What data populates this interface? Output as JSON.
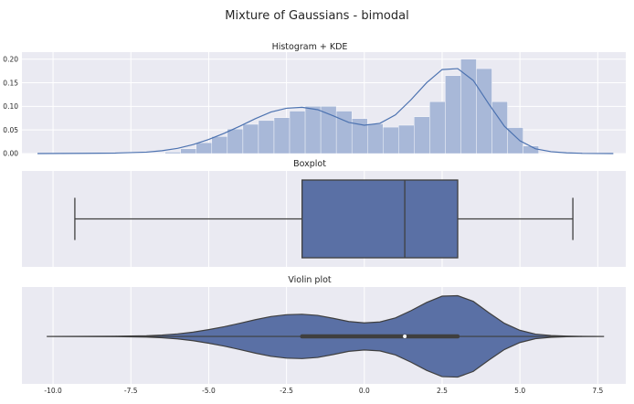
{
  "figure": {
    "title": "Mixture of Gaussians - bimodal",
    "colors": {
      "facecolor": "#EAEAF2",
      "grid": "#FFFFFF",
      "accent": "#4C72B0",
      "hist_fill": "#A8B8D8",
      "box_fill": "#5A70A5",
      "violin_fill": "#5A70A5",
      "line": "#3F3F3F"
    }
  },
  "chart_data": [
    {
      "type": "histogram",
      "title": "Histogram + KDE",
      "xlim": [
        -11,
        8.4
      ],
      "ylim": [
        0,
        0.215
      ],
      "yticks": [
        0.0,
        0.05,
        0.1,
        0.15,
        0.2
      ],
      "ytick_labels": [
        "0.00",
        "0.05",
        "0.10",
        "0.15",
        "0.20"
      ],
      "show_xticks": false,
      "bin_edges": [
        -6.4,
        -5.9,
        -5.4,
        -4.9,
        -4.4,
        -3.9,
        -3.4,
        -2.9,
        -2.4,
        -1.9,
        -1.4,
        -0.9,
        -0.4,
        0.1,
        0.6,
        1.1,
        1.6,
        2.1,
        2.6,
        3.1,
        3.6,
        4.1,
        4.6,
        5.1,
        5.6
      ],
      "counts": [
        0.003,
        0.01,
        0.023,
        0.036,
        0.052,
        0.062,
        0.07,
        0.076,
        0.09,
        0.1,
        0.1,
        0.09,
        0.074,
        0.063,
        0.056,
        0.06,
        0.078,
        0.11,
        0.165,
        0.2,
        0.18,
        0.11,
        0.055,
        0.016
      ],
      "kde": {
        "x": [
          -10.5,
          -9.0,
          -8.0,
          -7.0,
          -6.5,
          -6.0,
          -5.5,
          -5.0,
          -4.5,
          -4.0,
          -3.5,
          -3.0,
          -2.5,
          -2.0,
          -1.5,
          -1.0,
          -0.5,
          0.0,
          0.5,
          1.0,
          1.5,
          2.0,
          2.5,
          3.0,
          3.5,
          4.0,
          4.5,
          5.0,
          5.5,
          6.0,
          6.5,
          7.0,
          8.0
        ],
        "y": [
          0.0,
          0.0005,
          0.001,
          0.003,
          0.006,
          0.011,
          0.019,
          0.03,
          0.043,
          0.058,
          0.074,
          0.088,
          0.096,
          0.098,
          0.093,
          0.08,
          0.066,
          0.06,
          0.064,
          0.082,
          0.114,
          0.15,
          0.178,
          0.18,
          0.155,
          0.105,
          0.058,
          0.027,
          0.01,
          0.004,
          0.0015,
          0.0005,
          0.0
        ]
      }
    },
    {
      "type": "boxplot",
      "title": "Boxplot",
      "xlim": [
        -11,
        8.4
      ],
      "show_xticks": false,
      "whisker_low": -9.3,
      "q1": -2.0,
      "median": 1.3,
      "q3": 3.0,
      "whisker_high": 6.7
    },
    {
      "type": "violin",
      "title": "Violin plot",
      "xlim": [
        -11,
        8.4
      ],
      "xticks": [
        -10.0,
        -7.5,
        -5.0,
        -2.5,
        0.0,
        2.5,
        5.0,
        7.5
      ],
      "xtick_labels": [
        "-10.0",
        "-7.5",
        "-5.0",
        "-2.5",
        "0.0",
        "2.5",
        "5.0",
        "7.5"
      ],
      "line_min": -10.2,
      "line_max": 7.7,
      "q1": -2.0,
      "median": 1.3,
      "q3": 3.0,
      "density": {
        "x": [
          -10.2,
          -9.0,
          -8.0,
          -7.0,
          -6.5,
          -6.0,
          -5.5,
          -5.0,
          -4.5,
          -4.0,
          -3.5,
          -3.0,
          -2.5,
          -2.0,
          -1.5,
          -1.0,
          -0.5,
          0.0,
          0.5,
          1.0,
          1.5,
          2.0,
          2.5,
          3.0,
          3.5,
          4.0,
          4.5,
          5.0,
          5.5,
          6.0,
          6.5,
          7.0,
          7.7
        ],
        "y": [
          0.0,
          0.0005,
          0.001,
          0.003,
          0.006,
          0.011,
          0.019,
          0.03,
          0.043,
          0.058,
          0.074,
          0.088,
          0.096,
          0.098,
          0.093,
          0.08,
          0.066,
          0.06,
          0.064,
          0.082,
          0.114,
          0.15,
          0.178,
          0.18,
          0.155,
          0.105,
          0.058,
          0.027,
          0.01,
          0.004,
          0.0015,
          0.0005,
          0.0
        ]
      }
    }
  ]
}
